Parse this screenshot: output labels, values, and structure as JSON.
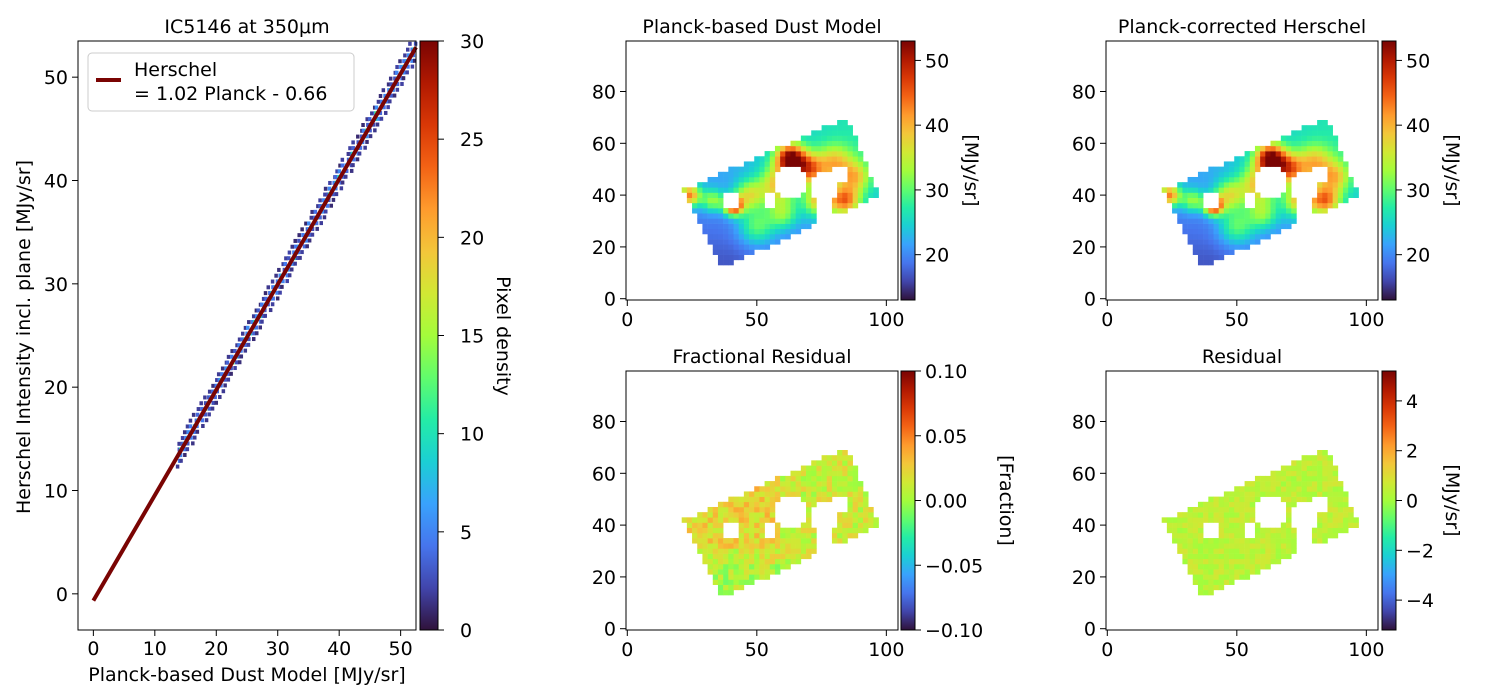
{
  "colors": {
    "fit_line": "#7a0403",
    "turbo": [
      "#30123b",
      "#4145ab",
      "#4675ed",
      "#39a2fc",
      "#1bcfd4",
      "#24eca6",
      "#61fc6c",
      "#a4fc3b",
      "#d1e834",
      "#f3c63a",
      "#fe9b2d",
      "#f36315",
      "#d93806",
      "#b11901",
      "#7a0403"
    ]
  },
  "chart_data": [
    {
      "id": "scatter",
      "type": "heatmap",
      "title": "IC5146 at 350μm",
      "xlabel": "Planck-based Dust Model [MJy/sr]",
      "ylabel": "Herschel Intensity incl. plane [MJy/sr]",
      "xlim": [
        -2.5,
        52.5
      ],
      "ylim": [
        -3.5,
        53.5
      ],
      "xticks": [
        "0",
        "10",
        "20",
        "30",
        "40",
        "50"
      ],
      "xtick_values": [
        0,
        10,
        20,
        30,
        40,
        50
      ],
      "yticks": [
        "0",
        "10",
        "20",
        "30",
        "40",
        "50"
      ],
      "ytick_values": [
        0,
        10,
        20,
        30,
        40,
        50
      ],
      "fit": {
        "slope": 1.02,
        "intercept": -0.66,
        "x_range": [
          0,
          52.5
        ]
      },
      "legend": {
        "line1": "Herschel",
        "line2": "= 1.02 Planck - 0.66",
        "position": "top-left"
      },
      "density_range_x": [
        13.8,
        52.5
      ],
      "colorbar": {
        "label": "Pixel density",
        "min": 0,
        "max": 30,
        "ticks": [
          "0",
          "5",
          "10",
          "15",
          "20",
          "25",
          "30"
        ],
        "tick_values": [
          0,
          5,
          10,
          15,
          20,
          25,
          30
        ]
      }
    },
    {
      "id": "dust",
      "type": "heatmap",
      "title": "Planck-based Dust Model",
      "map_kind": "intensity",
      "xticks": [
        "0",
        "50",
        "100"
      ],
      "xtick_values": [
        0,
        50,
        100
      ],
      "yticks": [
        "0",
        "20",
        "40",
        "60",
        "80"
      ],
      "ytick_values": [
        0,
        20,
        40,
        60,
        80
      ],
      "xlim": [
        -0.5,
        104.5
      ],
      "ylim": [
        -0.5,
        99.5
      ],
      "colorbar": {
        "label": "[MJy/sr]",
        "min": 13,
        "max": 53,
        "ticks": [
          "20",
          "30",
          "40",
          "50"
        ],
        "tick_values": [
          20,
          30,
          40,
          50
        ]
      }
    },
    {
      "id": "corrected",
      "type": "heatmap",
      "title": "Planck-corrected Herschel",
      "map_kind": "intensity",
      "xticks": [
        "0",
        "50",
        "100"
      ],
      "xtick_values": [
        0,
        50,
        100
      ],
      "yticks": [
        "0",
        "20",
        "40",
        "60",
        "80"
      ],
      "ytick_values": [
        0,
        20,
        40,
        60,
        80
      ],
      "xlim": [
        -0.5,
        104.5
      ],
      "ylim": [
        -0.5,
        99.5
      ],
      "colorbar": {
        "label": "[MJy/sr]",
        "min": 13,
        "max": 53,
        "ticks": [
          "20",
          "30",
          "40",
          "50"
        ],
        "tick_values": [
          20,
          30,
          40,
          50
        ]
      }
    },
    {
      "id": "fracres",
      "type": "heatmap",
      "title": "Fractional Residual",
      "map_kind": "fraction",
      "xticks": [
        "0",
        "50",
        "100"
      ],
      "xtick_values": [
        0,
        50,
        100
      ],
      "yticks": [
        "0",
        "20",
        "40",
        "60",
        "80"
      ],
      "ytick_values": [
        0,
        20,
        40,
        60,
        80
      ],
      "xlim": [
        -0.5,
        104.5
      ],
      "ylim": [
        -0.5,
        99.5
      ],
      "colorbar": {
        "label": "[Fraction]",
        "min": -0.1,
        "max": 0.1,
        "ticks": [
          "0.10",
          "0.05",
          "0.00",
          "−0.05",
          "−0.10"
        ],
        "tick_values": [
          0.1,
          0.05,
          0.0,
          -0.05,
          -0.1
        ]
      }
    },
    {
      "id": "residual",
      "type": "heatmap",
      "title": "Residual",
      "map_kind": "residual",
      "xticks": [
        "0",
        "50",
        "100"
      ],
      "xtick_values": [
        0,
        50,
        100
      ],
      "yticks": [
        "0",
        "20",
        "40",
        "60",
        "80"
      ],
      "ytick_values": [
        0,
        20,
        40,
        60,
        80
      ],
      "xlim": [
        -0.5,
        104.5
      ],
      "ylim": [
        -0.5,
        99.5
      ],
      "colorbar": {
        "label": "[MJy/sr]",
        "min": -5.2,
        "max": 5.2,
        "ticks": [
          "4",
          "2",
          "0",
          "−2",
          "−4"
        ],
        "tick_values": [
          4,
          2,
          0,
          -2,
          -4
        ]
      }
    }
  ]
}
